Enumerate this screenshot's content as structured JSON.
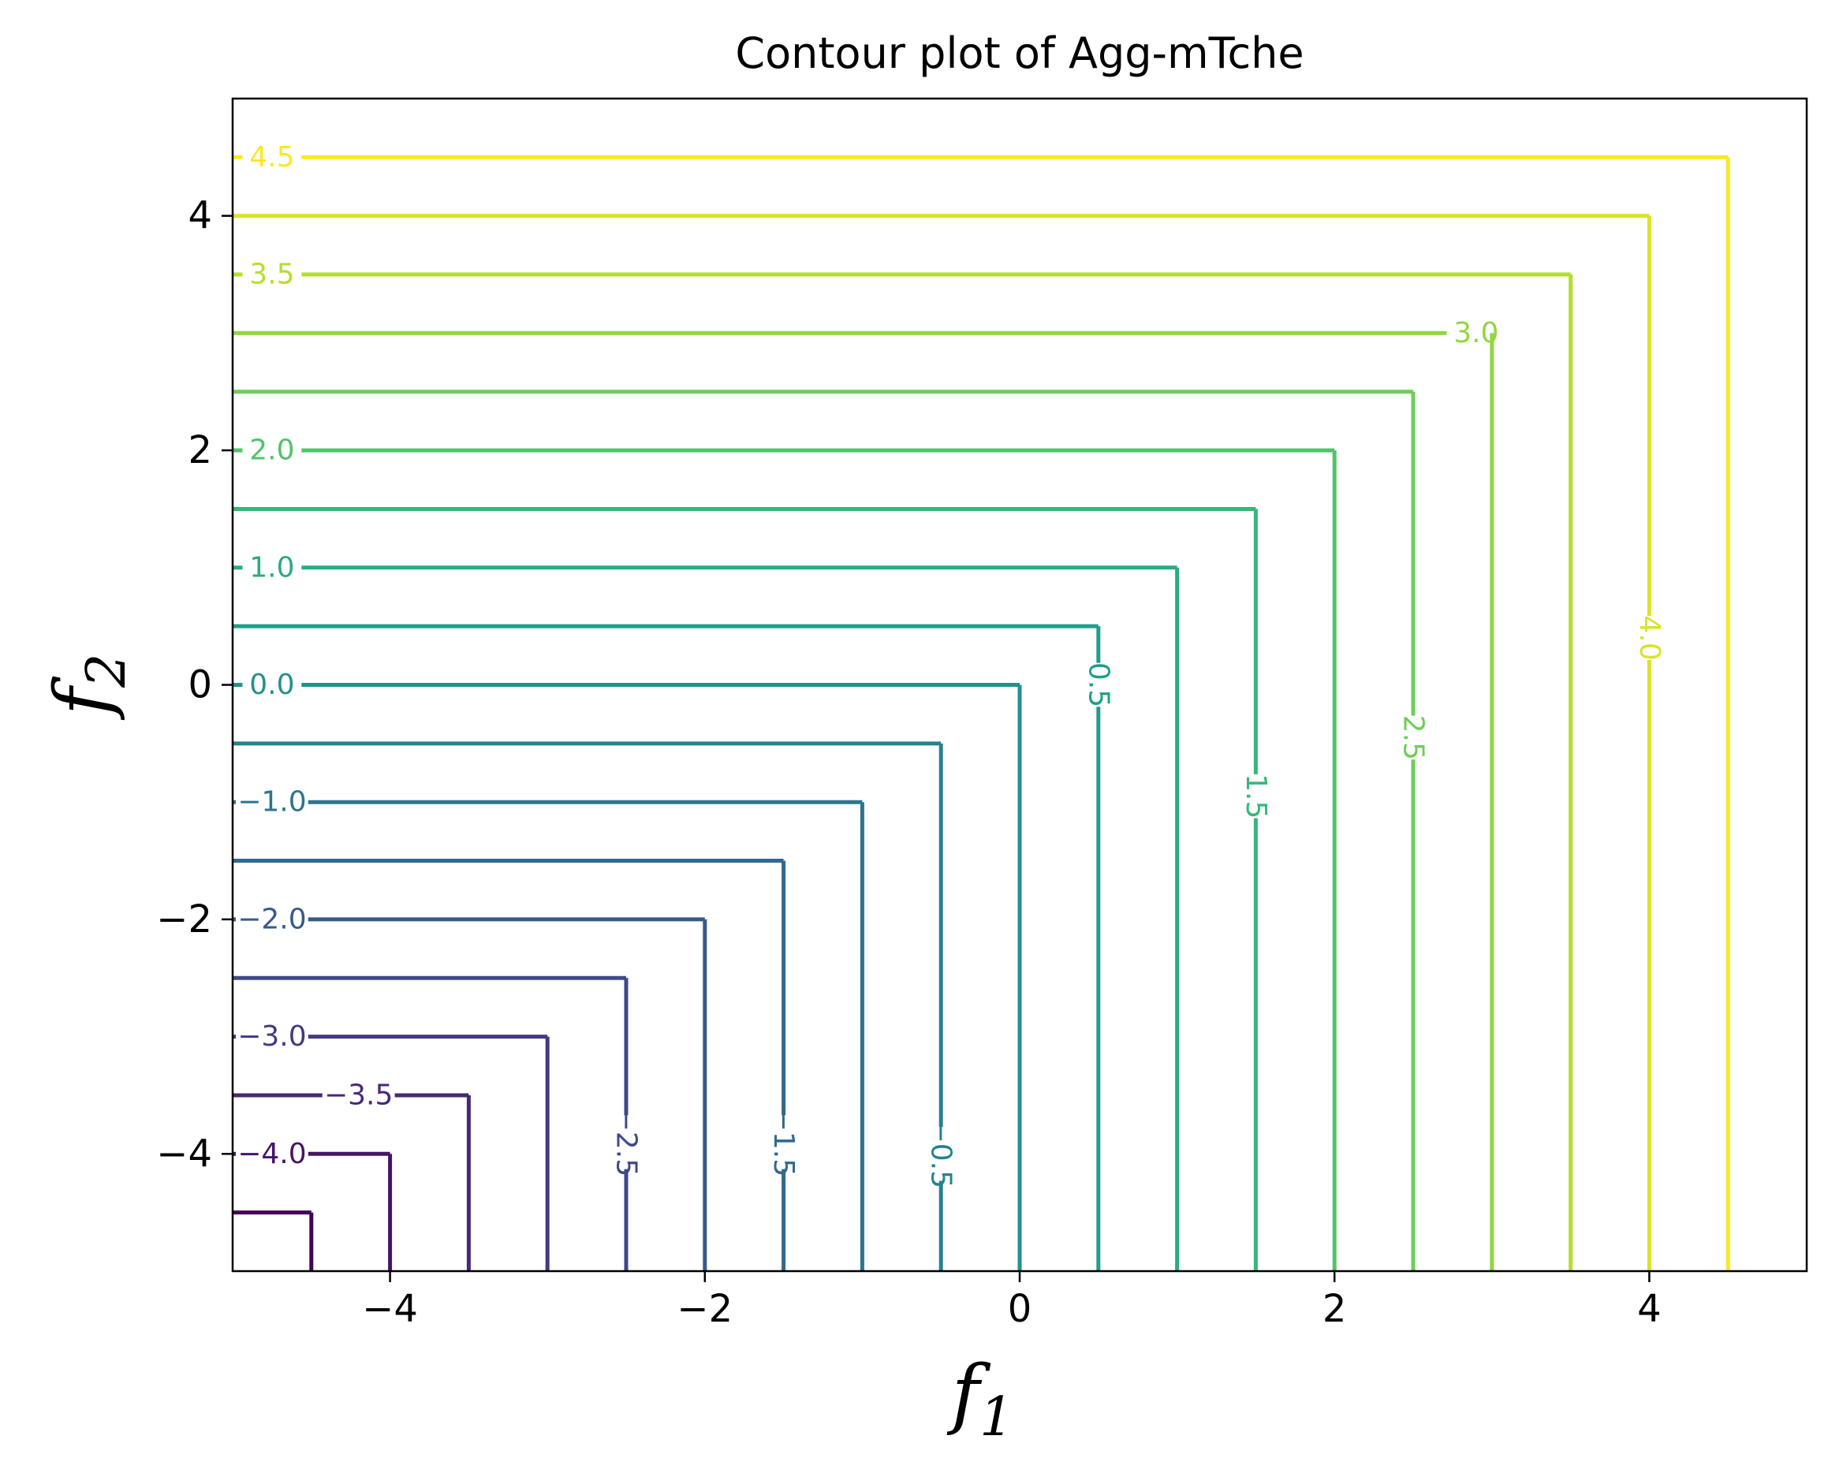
{
  "chart_data": {
    "type": "contour",
    "title": "Contour plot of Agg-mTche",
    "xlabel": "f",
    "xlabel_sub": "1",
    "ylabel": "f",
    "ylabel_sub": "2",
    "xlim": [
      -5,
      5
    ],
    "ylim": [
      -5,
      5
    ],
    "xticks": [
      -4,
      -2,
      0,
      2,
      4
    ],
    "yticks": [
      -4,
      -2,
      0,
      2,
      4
    ],
    "xtick_labels": [
      "−4",
      "−2",
      "0",
      "2",
      "4"
    ],
    "ytick_labels": [
      "−4",
      "−2",
      "0",
      "2",
      "4"
    ],
    "colormap": "viridis",
    "grid": false,
    "levels": [
      -4.5,
      -4.0,
      -3.5,
      -3.0,
      -2.5,
      -2.0,
      -1.5,
      -1.0,
      -0.5,
      0.0,
      0.5,
      1.0,
      1.5,
      2.0,
      2.5,
      3.0,
      3.5,
      4.0,
      4.5
    ],
    "inline_labels": [
      {
        "text": "4.5",
        "level": 4.5,
        "axis": "horizontal",
        "at": -4.75
      },
      {
        "text": "3.5",
        "level": 3.5,
        "axis": "horizontal",
        "at": -4.75
      },
      {
        "text": "3.0",
        "level": 3.0,
        "axis": "horizontal",
        "at": 2.9
      },
      {
        "text": "2.0",
        "level": 2.0,
        "axis": "horizontal",
        "at": -4.75
      },
      {
        "text": "1.0",
        "level": 1.0,
        "axis": "horizontal",
        "at": -4.75
      },
      {
        "text": "0.0",
        "level": 0.0,
        "axis": "horizontal",
        "at": -4.75
      },
      {
        "text": "−1.0",
        "level": -1.0,
        "axis": "horizontal",
        "at": -4.75
      },
      {
        "text": "−2.0",
        "level": -2.0,
        "axis": "horizontal",
        "at": -4.75
      },
      {
        "text": "−3.0",
        "level": -3.0,
        "axis": "horizontal",
        "at": -4.75
      },
      {
        "text": "−3.5",
        "level": -3.5,
        "axis": "horizontal",
        "at": -4.2
      },
      {
        "text": "−4.0",
        "level": -4.0,
        "axis": "horizontal",
        "at": -4.75
      },
      {
        "text": "0.5",
        "level": 0.5,
        "axis": "vertical",
        "at": 0.0
      },
      {
        "text": "1.5",
        "level": 1.5,
        "axis": "vertical",
        "at": -0.95
      },
      {
        "text": "2.5",
        "level": 2.5,
        "axis": "vertical",
        "at": -0.45
      },
      {
        "text": "4.0",
        "level": 4.0,
        "axis": "vertical",
        "at": 0.4
      },
      {
        "text": "−0.5",
        "level": -0.5,
        "axis": "vertical",
        "at": -4.0
      },
      {
        "text": "−1.5",
        "level": -1.5,
        "axis": "vertical",
        "at": -3.9
      },
      {
        "text": "−2.5",
        "level": -2.5,
        "axis": "vertical",
        "at": -3.9
      }
    ]
  }
}
